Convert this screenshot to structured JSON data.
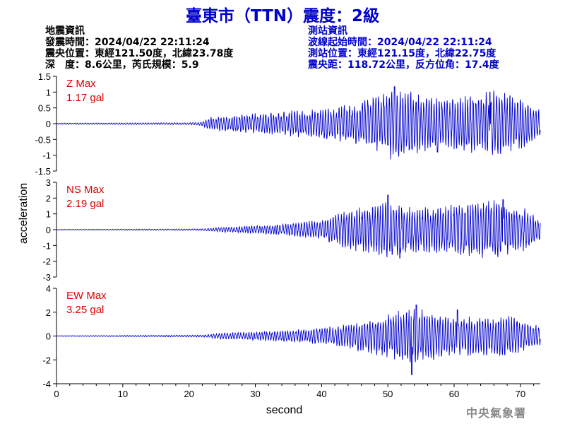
{
  "title": "臺東市（TTN）震度：2級",
  "earthquake_info": {
    "header": "地震資訊",
    "origin_time": "發震時間：2024/04/22 22:11:24",
    "epicenter": "震央位置：東經121.50度，北緯23.78度",
    "depth_magnitude": "深　度：8.6公里，芮氏規模：5.9"
  },
  "station_info": {
    "header": "測站資訊",
    "wave_start": "波線起始時間：2024/04/22 22:11:24",
    "location": "測站位置：東經121.15度，北緯22.75度",
    "distance": "震央距：118.72公里，反方位角：17.4度"
  },
  "footer": "中央氣象署",
  "colors": {
    "title": "#0000cc",
    "trace": "#0000cc",
    "max_label": "#dd0000"
  },
  "chart_data": {
    "type": "line",
    "xlabel": "second",
    "ylabel": "acceleration",
    "xlim": [
      0,
      73
    ],
    "xticks": [
      "0",
      "10",
      "20",
      "30",
      "40",
      "50",
      "60",
      "70"
    ],
    "grid": false,
    "panels": [
      {
        "name": "Z",
        "max_label": "Z Max",
        "max_value": "1.17 gal",
        "ylim": [
          -1.5,
          1.5
        ],
        "yticks": [
          "1.5",
          "1",
          "0.5",
          "0",
          "-0.5",
          "-1",
          "-1.5"
        ],
        "envelope": [
          {
            "t": 0,
            "a": 0.02
          },
          {
            "t": 20,
            "a": 0.03
          },
          {
            "t": 22,
            "a": 0.06
          },
          {
            "t": 23,
            "a": 0.2
          },
          {
            "t": 30,
            "a": 0.3
          },
          {
            "t": 40,
            "a": 0.45
          },
          {
            "t": 45,
            "a": 0.6
          },
          {
            "t": 51,
            "a": 1.1
          },
          {
            "t": 58,
            "a": 0.7
          },
          {
            "t": 66,
            "a": 1.0
          },
          {
            "t": 70,
            "a": 0.8
          },
          {
            "t": 73,
            "a": 0.4
          }
        ],
        "peaks": [
          {
            "t": 51.0,
            "v": 1.17
          },
          {
            "t": 57.5,
            "v": -0.9
          },
          {
            "t": 65.4,
            "v": 1.0
          }
        ]
      },
      {
        "name": "NS",
        "max_label": "NS Max",
        "max_value": "2.19 gal",
        "ylim": [
          -3,
          3
        ],
        "yticks": [
          "3",
          "2",
          "1",
          "0",
          "-1",
          "-2",
          "-3"
        ],
        "envelope": [
          {
            "t": 0,
            "a": 0.02
          },
          {
            "t": 22,
            "a": 0.05
          },
          {
            "t": 25,
            "a": 0.15
          },
          {
            "t": 35,
            "a": 0.35
          },
          {
            "t": 40,
            "a": 0.6
          },
          {
            "t": 44,
            "a": 1.2
          },
          {
            "t": 50,
            "a": 1.7
          },
          {
            "t": 55,
            "a": 1.3
          },
          {
            "t": 62,
            "a": 1.6
          },
          {
            "t": 67,
            "a": 1.8
          },
          {
            "t": 71,
            "a": 1.2
          },
          {
            "t": 73,
            "a": 0.6
          }
        ],
        "peaks": [
          {
            "t": 50.0,
            "v": 2.19
          },
          {
            "t": 67.4,
            "v": 1.9
          },
          {
            "t": 51.8,
            "v": -1.8
          }
        ]
      },
      {
        "name": "EW",
        "max_label": "EW Max",
        "max_value": "3.25 gal",
        "ylim": [
          -4,
          4
        ],
        "yticks": [
          "4",
          "2",
          "0",
          "-2",
          "-4"
        ],
        "envelope": [
          {
            "t": 0,
            "a": 0.03
          },
          {
            "t": 22,
            "a": 0.08
          },
          {
            "t": 25,
            "a": 0.25
          },
          {
            "t": 35,
            "a": 0.45
          },
          {
            "t": 42,
            "a": 0.8
          },
          {
            "t": 47,
            "a": 1.3
          },
          {
            "t": 54,
            "a": 2.3
          },
          {
            "t": 60,
            "a": 1.5
          },
          {
            "t": 68,
            "a": 1.6
          },
          {
            "t": 73,
            "a": 0.8
          }
        ],
        "peaks": [
          {
            "t": 53.6,
            "v": -3.25
          },
          {
            "t": 54.3,
            "v": 2.6
          },
          {
            "t": 60.5,
            "v": 2.2
          }
        ]
      }
    ]
  }
}
